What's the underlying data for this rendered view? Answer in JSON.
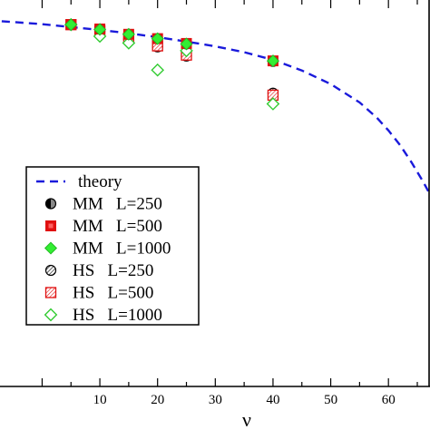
{
  "chart_data": {
    "type": "scatter",
    "title": "",
    "xlabel": "ν",
    "ylabel": "",
    "xlim": [
      -7.3,
      67.2
    ],
    "ylim": [
      -3.0,
      1.0
    ],
    "xticks": [
      10,
      20,
      30,
      40,
      50,
      60
    ],
    "grid": false,
    "legend_position": "left",
    "theory": {
      "name": "theory",
      "color": "#1a1adb",
      "x": [
        -7,
        0,
        5,
        10,
        15,
        20,
        25,
        30,
        35,
        40,
        45,
        50,
        55,
        58,
        60,
        62,
        64,
        65,
        66,
        67
      ],
      "y": [
        0.78,
        0.75,
        0.72,
        0.69,
        0.655,
        0.615,
        0.57,
        0.52,
        0.46,
        0.38,
        0.27,
        0.13,
        -0.06,
        -0.22,
        -0.35,
        -0.5,
        -0.68,
        -0.78,
        -0.88,
        -0.99
      ]
    },
    "series": [
      {
        "name": "MM   L=250",
        "marker": "circle-half",
        "color": "#000000",
        "x": [
          5,
          10,
          15,
          20,
          25,
          40
        ],
        "y": [
          0.745,
          0.7,
          0.645,
          0.6,
          0.545,
          0.365
        ]
      },
      {
        "name": "MM   L=500",
        "marker": "square-filled",
        "color": "#e01010",
        "x": [
          5,
          10,
          15,
          20,
          25,
          40
        ],
        "y": [
          0.745,
          0.7,
          0.645,
          0.6,
          0.55,
          0.37
        ]
      },
      {
        "name": "MM   L=1000",
        "marker": "diamond-filled",
        "color": "#33ee33",
        "x": [
          5,
          10,
          15,
          20,
          25,
          40
        ],
        "y": [
          0.745,
          0.695,
          0.645,
          0.6,
          0.545,
          0.37
        ]
      },
      {
        "name": "HS   L=250",
        "marker": "circle-hatch",
        "color": "#000000",
        "x": [
          5,
          10,
          15,
          20,
          25,
          40
        ],
        "y": [
          0.745,
          0.675,
          0.595,
          0.515,
          0.42,
          0.035
        ]
      },
      {
        "name": "HS   L=500",
        "marker": "square-hatch",
        "color": "#e01010",
        "x": [
          5,
          10,
          15,
          20,
          25,
          40
        ],
        "y": [
          0.745,
          0.68,
          0.605,
          0.525,
          0.43,
          0.015
        ]
      },
      {
        "name": "HS   L=1000",
        "marker": "diamond-open",
        "color": "#33cc33",
        "x": [
          5,
          10,
          15,
          20,
          25,
          40
        ],
        "y": [
          0.745,
          0.625,
          0.555,
          0.275,
          0.475,
          -0.075
        ]
      }
    ]
  }
}
